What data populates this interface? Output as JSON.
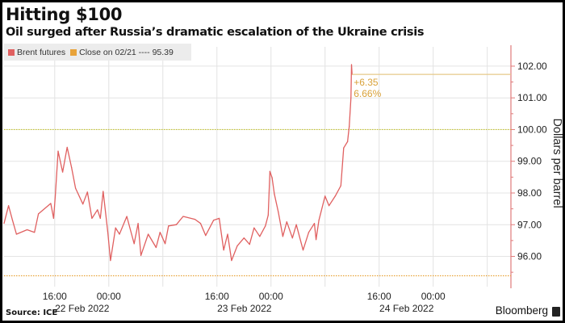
{
  "chart_data": {
    "type": "line",
    "title": "Hitting $100",
    "subtitle": "Oil surged after Russia’s dramatic escalation of the Ukraine crisis",
    "ylabel": "Dollars per barrel",
    "y_axis_side": "right",
    "ylim": [
      95.3,
      102.1
    ],
    "yticks": [
      "96.00",
      "97.00",
      "98.00",
      "99.00",
      "100.00",
      "101.00",
      "102.00"
    ],
    "xlim": [
      "2022-02-22 08:30",
      "2022-02-25 11:30"
    ],
    "xticks": [
      {
        "t": "2022-02-22 16:00",
        "label": "16:00",
        "date": "22 Feb 2022"
      },
      {
        "t": "2022-02-23 00:00",
        "label": "00:00",
        "date": ""
      },
      {
        "t": "2022-02-23 16:00",
        "label": "16:00",
        "date": "23 Feb 2022"
      },
      {
        "t": "2022-02-24 00:00",
        "label": "00:00",
        "date": ""
      },
      {
        "t": "2022-02-24 16:00",
        "label": "16:00",
        "date": "24 Feb 2022"
      },
      {
        "t": "2022-02-25 00:00",
        "label": "00:00",
        "date": ""
      }
    ],
    "grid": true,
    "legend_position": "top-left",
    "legend": [
      {
        "label": "Brent futures",
        "color": "#e06060"
      },
      {
        "label": "Close on 02/21 ---- 95.39",
        "color": "#e8a33a"
      }
    ],
    "reference_lines": [
      {
        "value": 95.39,
        "color": "#e8a33a"
      },
      {
        "value": 100.0,
        "color": "#c8c830"
      }
    ],
    "annotation": {
      "change": "+6.35",
      "percent": "6.66%",
      "level": 101.74,
      "color": "#d9a23a"
    },
    "series": [
      {
        "name": "Brent futures",
        "color": "#e06060",
        "points": [
          [
            "2022-02-22 08:30",
            97.04
          ],
          [
            "2022-02-22 09:10",
            97.6
          ],
          [
            "2022-02-22 09:45",
            97.14
          ],
          [
            "2022-02-22 10:20",
            96.7
          ],
          [
            "2022-02-22 11:55",
            96.84
          ],
          [
            "2022-02-22 13:00",
            96.76
          ],
          [
            "2022-02-22 13:35",
            97.34
          ],
          [
            "2022-02-22 15:25",
            97.67
          ],
          [
            "2022-02-22 15:50",
            97.2
          ],
          [
            "2022-02-22 16:05",
            97.9
          ],
          [
            "2022-02-22 16:30",
            99.32
          ],
          [
            "2022-02-22 17:10",
            98.66
          ],
          [
            "2022-02-22 17:50",
            99.44
          ],
          [
            "2022-02-22 18:30",
            98.8
          ],
          [
            "2022-02-22 19:05",
            98.15
          ],
          [
            "2022-02-22 20:10",
            97.65
          ],
          [
            "2022-02-22 20:50",
            98.03
          ],
          [
            "2022-02-22 21:30",
            97.2
          ],
          [
            "2022-02-22 22:20",
            97.47
          ],
          [
            "2022-02-22 22:45",
            97.2
          ],
          [
            "2022-02-22 23:10",
            98.05
          ],
          [
            "2022-02-22 23:50",
            96.8
          ],
          [
            "2022-02-23 00:15",
            95.87
          ],
          [
            "2022-02-23 01:00",
            96.9
          ],
          [
            "2022-02-23 01:35",
            96.7
          ],
          [
            "2022-02-23 02:40",
            97.26
          ],
          [
            "2022-02-23 03:45",
            96.4
          ],
          [
            "2022-02-23 04:20",
            97.04
          ],
          [
            "2022-02-23 04:45",
            96.03
          ],
          [
            "2022-02-23 05:50",
            96.7
          ],
          [
            "2022-02-23 07:00",
            96.28
          ],
          [
            "2022-02-23 07:35",
            96.76
          ],
          [
            "2022-02-23 08:20",
            96.4
          ],
          [
            "2022-02-23 08:50",
            96.96
          ],
          [
            "2022-02-23 10:00",
            97.0
          ],
          [
            "2022-02-23 11:00",
            97.26
          ],
          [
            "2022-02-23 12:45",
            97.17
          ],
          [
            "2022-02-23 13:35",
            97.04
          ],
          [
            "2022-02-23 14:20",
            96.66
          ],
          [
            "2022-02-23 15:30",
            97.14
          ],
          [
            "2022-02-23 16:20",
            97.2
          ],
          [
            "2022-02-23 17:00",
            96.2
          ],
          [
            "2022-02-23 17:35",
            96.7
          ],
          [
            "2022-02-23 18:10",
            95.87
          ],
          [
            "2022-02-23 19:00",
            96.33
          ],
          [
            "2022-02-23 20:00",
            96.58
          ],
          [
            "2022-02-23 20:50",
            96.38
          ],
          [
            "2022-02-23 21:30",
            96.9
          ],
          [
            "2022-02-23 22:20",
            96.63
          ],
          [
            "2022-02-23 23:10",
            96.96
          ],
          [
            "2022-02-23 23:35",
            97.3
          ],
          [
            "2022-02-23 23:50",
            98.68
          ],
          [
            "2022-02-24 00:10",
            98.48
          ],
          [
            "2022-02-24 00:30",
            97.97
          ],
          [
            "2022-02-24 01:05",
            97.4
          ],
          [
            "2022-02-24 01:45",
            96.63
          ],
          [
            "2022-02-24 02:20",
            97.09
          ],
          [
            "2022-02-24 03:10",
            96.58
          ],
          [
            "2022-02-24 03:45",
            97.0
          ],
          [
            "2022-02-24 04:45",
            96.2
          ],
          [
            "2022-02-24 05:35",
            96.76
          ],
          [
            "2022-02-24 06:25",
            97.04
          ],
          [
            "2022-02-24 06:40",
            96.53
          ],
          [
            "2022-02-24 07:05",
            97.14
          ],
          [
            "2022-02-24 08:00",
            97.9
          ],
          [
            "2022-02-24 08:35",
            97.6
          ],
          [
            "2022-02-24 09:30",
            97.9
          ],
          [
            "2022-02-24 10:20",
            98.23
          ],
          [
            "2022-02-24 10:45",
            99.42
          ],
          [
            "2022-02-24 11:20",
            99.62
          ],
          [
            "2022-02-24 11:35",
            100.1
          ],
          [
            "2022-02-24 11:50",
            101.0
          ],
          [
            "2022-02-24 11:55",
            102.05
          ],
          [
            "2022-02-24 12:00",
            101.74
          ]
        ]
      }
    ]
  },
  "footer": {
    "source": "Source: ICE",
    "brand": "Bloomberg"
  }
}
